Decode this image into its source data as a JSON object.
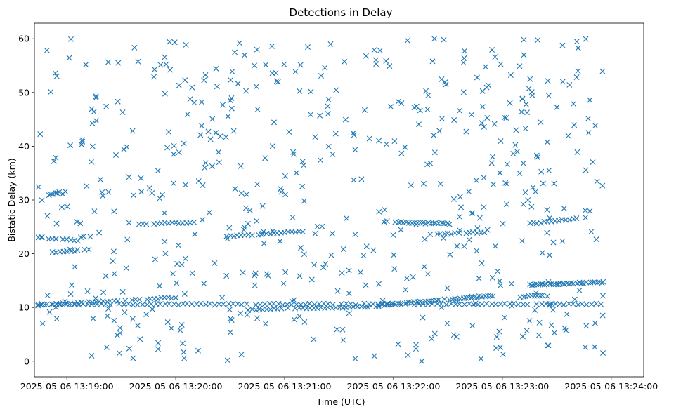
{
  "chart_data": {
    "type": "scatter",
    "title": "Detections in Delay",
    "xlabel": "Time (UTC)",
    "ylabel": "Bistatic Delay (km)",
    "marker": "x",
    "color": "#1f77b4",
    "grid": false,
    "x_unit": "seconds since 2025-05-06 13:19:00",
    "xlim": [
      -17.9,
      317.9
    ],
    "ylim": [
      -2.9,
      62.9
    ],
    "x_ticks": [
      0,
      60,
      120,
      180,
      240,
      300
    ],
    "x_tick_labels": [
      "2025-05-06 13:19:00",
      "2025-05-06 13:20:00",
      "2025-05-06 13:21:00",
      "2025-05-06 13:22:00",
      "2025-05-06 13:23:00",
      "2025-05-06 13:24:00"
    ],
    "y_ticks": [
      0,
      10,
      20,
      30,
      40,
      50,
      60
    ],
    "y_tick_labels": [
      "0",
      "10",
      "20",
      "30",
      "40",
      "50",
      "60"
    ],
    "data_x_range_seconds": [
      -16,
      296
    ],
    "tracks": [
      {
        "name": "constant ~10.6 km line",
        "x_start": -16,
        "x_end": 296,
        "y_start": 10.6,
        "y_end": 10.6,
        "step": 2.5
      },
      {
        "name": "upper track A",
        "x_start": -16,
        "x_end": 7,
        "y_start": 23.0,
        "y_end": 22.4,
        "step": 2
      },
      {
        "name": "upper track B",
        "x_start": 40,
        "x_end": 70,
        "y_start": 25.6,
        "y_end": 25.8,
        "step": 2
      },
      {
        "name": "upper track C",
        "x_start": 88,
        "x_end": 130,
        "y_start": 23.2,
        "y_end": 24.2,
        "step": 2
      },
      {
        "name": "upper track D",
        "x_start": 175,
        "x_end": 212,
        "y_start": 26.0,
        "y_end": 25.5,
        "step": 1.5
      },
      {
        "name": "upper track E",
        "x_start": 200,
        "x_end": 230,
        "y_start": 23.6,
        "y_end": 24.0,
        "step": 2
      },
      {
        "name": "upper track F",
        "x_start": 255,
        "x_end": 282,
        "y_start": 25.6,
        "y_end": 26.6,
        "step": 2
      },
      {
        "name": "lower track A",
        "x_start": -16,
        "x_end": 60,
        "y_start": 10.4,
        "y_end": 11.9,
        "step": 2
      },
      {
        "name": "lower track B",
        "x_start": 100,
        "x_end": 172,
        "y_start": 9.6,
        "y_end": 10.2,
        "step": 2
      },
      {
        "name": "lower track C",
        "x_start": 172,
        "x_end": 235,
        "y_start": 10.4,
        "y_end": 12.2,
        "step": 1.5
      },
      {
        "name": "lower track D",
        "x_start": 255,
        "x_end": 296,
        "y_start": 14.2,
        "y_end": 14.7,
        "step": 1.2
      },
      {
        "name": "short cluster",
        "x_start": -10,
        "x_end": -4,
        "y_start": 31.0,
        "y_end": 31.4,
        "step": 1.2
      },
      {
        "name": "short cluster",
        "x_start": -8,
        "x_end": 12,
        "y_start": 20.2,
        "y_end": 20.8,
        "step": 2
      },
      {
        "name": "short cluster",
        "x_start": 250,
        "x_end": 262,
        "y_start": 12.0,
        "y_end": 12.2,
        "step": 1.5
      }
    ],
    "noise": {
      "count": 560,
      "x_range": [
        -16,
        296
      ],
      "y_range": [
        0,
        60
      ]
    }
  }
}
